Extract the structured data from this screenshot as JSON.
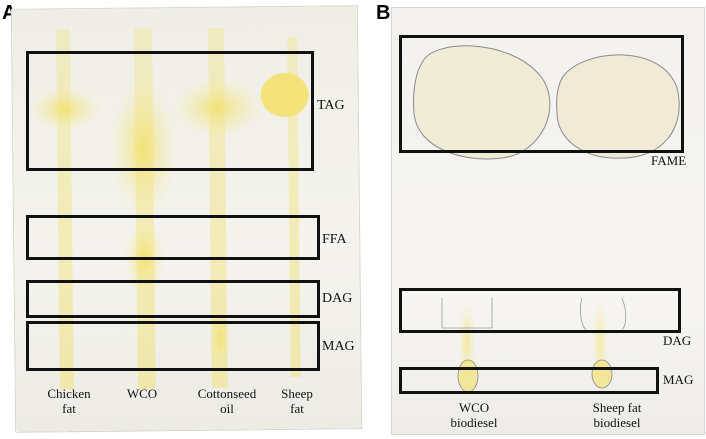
{
  "panels": {
    "a": {
      "letter": "A",
      "bands": {
        "tag": "TAG",
        "ffa": "FFA",
        "dag": "DAG",
        "mag": "MAG"
      },
      "lanes": [
        {
          "line1": "Chicken",
          "line2": "fat"
        },
        {
          "line1": "WCO",
          "line2": ""
        },
        {
          "line1": "Cottonseed",
          "line2": "oil"
        },
        {
          "line1": "Sheep",
          "line2": "fat"
        }
      ]
    },
    "b": {
      "letter": "B",
      "bands": {
        "fame": "FAME",
        "dag": "DAG",
        "mag": "MAG"
      },
      "lanes": [
        {
          "line1": "WCO",
          "line2": "biodiesel"
        },
        {
          "line1": "Sheep fat",
          "line2": "biodiesel"
        }
      ]
    }
  },
  "colors": {
    "frame": "#111111",
    "stain": "#f2e58a",
    "plate": "#f1f0ea"
  }
}
